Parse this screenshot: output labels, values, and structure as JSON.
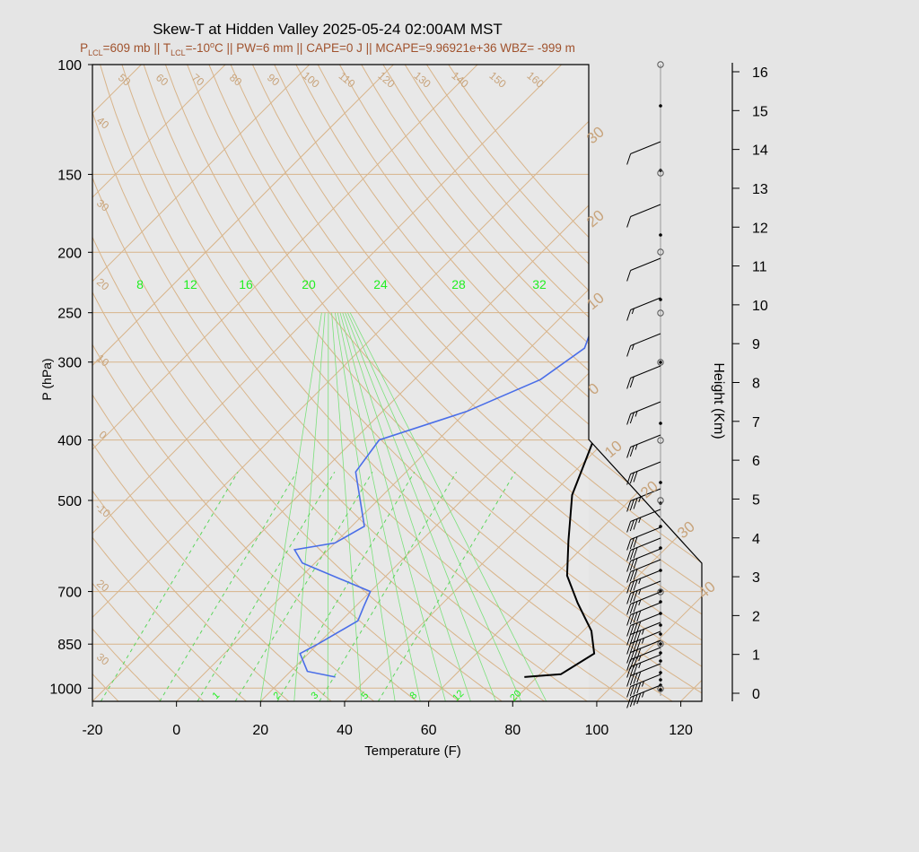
{
  "chart_data": {
    "type": "skew-t",
    "title": "Skew-T at Hidden Valley 2025-05-24 02:00AM MST",
    "subtitle": {
      "plcl_label": "P",
      "plcl_sub": "LCL",
      "plcl_value": "=609 mb || T",
      "tlcl_sub": "LCL",
      "tlcl_value": "=-10",
      "tlcl_sup": "o",
      "rest": "C || PW=6 mm || CAPE=0 J || MCAPE=9.96921e+36 WBZ= -999 m"
    },
    "xlabel": "Temperature (F)",
    "ylabel": "P (hPa)",
    "y2label": "Height (Km)",
    "xlim": [
      -20,
      125
    ],
    "ylim": [
      1050,
      100
    ],
    "x_ticks": [
      "-20",
      "0",
      "20",
      "40",
      "60",
      "80",
      "100",
      "120"
    ],
    "y_ticks": [
      "100",
      "150",
      "200",
      "250",
      "300",
      "400",
      "500",
      "700",
      "850",
      "1000"
    ],
    "height_ticks": [
      "0",
      "1",
      "2",
      "3",
      "4",
      "5",
      "6",
      "7",
      "8",
      "9",
      "10",
      "11",
      "12",
      "13",
      "14",
      "15",
      "16"
    ],
    "mixing_ratio_labels": [
      "8",
      "12",
      "16",
      "20",
      "24",
      "28",
      "32"
    ],
    "mixing_ratio_bottom_labels": [
      "1",
      "2",
      "3",
      "5",
      "8",
      "12",
      "20"
    ],
    "dry_adiabat_labels": [
      "50",
      "60",
      "70",
      "80",
      "90",
      "100",
      "110",
      "120",
      "130",
      "140",
      "150",
      "160"
    ],
    "isotherm_labels_left": [
      "40",
      "30",
      "20",
      "10",
      "0",
      "-10",
      "20",
      "30"
    ],
    "isotherm_labels_right": [
      "30",
      "20",
      "10",
      "0",
      "10",
      "20",
      "30",
      "40"
    ],
    "series": [
      {
        "name": "",
        "color": "#000000",
        "temperature_f": [
          77,
          85,
          88,
          82,
          72,
          63,
          55,
          45,
          35,
          24,
          25,
          24,
          25,
          28,
          32
        ],
        "pressure_hpa": [
          960,
          950,
          880,
          810,
          730,
          660,
          580,
          490,
          380,
          260,
          230,
          200,
          170,
          130,
          100
        ]
      },
      {
        "name": "",
        "color": "#4a6ee8",
        "temperature_f": [
          32,
          24,
          18,
          20,
          24,
          22,
          20,
          -3,
          -8,
          0,
          3,
          -12,
          -14,
          0,
          10,
          13,
          6,
          -4,
          10,
          14
        ],
        "pressure_hpa": [
          960,
          940,
          880,
          850,
          780,
          740,
          700,
          630,
          600,
          585,
          550,
          450,
          400,
          360,
          320,
          285,
          240,
          200,
          165,
          100
        ]
      }
    ],
    "wind_barbs_kt": [
      10,
      10,
      10,
      15,
      15,
      20,
      25,
      25,
      30,
      35,
      35,
      30,
      30,
      30,
      30,
      35,
      35,
      35,
      40,
      40,
      45,
      45,
      40,
      35,
      35,
      40,
      45,
      45
    ]
  }
}
